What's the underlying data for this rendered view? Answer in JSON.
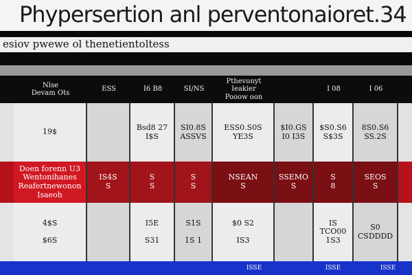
{
  "header": {
    "title": "Phypersertion anl perventonaioret.34",
    "subtitle": "esiov pwewe ol thenetientoltess"
  },
  "table": {
    "columns": [
      "Nlse\nDevam Ots",
      "ESS",
      "I6 B8",
      "SI/NS",
      "Pthevonyt\nIeakier\nPooow oon",
      null,
      "I 08",
      "I 06"
    ],
    "rows": [
      [
        "19$",
        null,
        "Bsd8 27\nI$S",
        "SI0.8S\nASSVS",
        "ESS0.S0S\nYE3S",
        "$I0.GS\nI0 I3S",
        "$S0.S6\nS$3S",
        "8S0.S6\nSS.2S"
      ],
      [
        "Doen forenn U3\nWentonihanes\nReafertnewonon\nIsaeoh",
        "IS4S\nS",
        "S\nS",
        "S\nS",
        "NSEAN\nS",
        "SSEMO\nS",
        "S\n8",
        "SEOS\nS"
      ],
      [
        "4$S\n\n$6S",
        null,
        "I5E\n\nS31",
        "S1S\n\n1S 1",
        "$0 S2\n\nIS3",
        null,
        "IS\nTCO00\n1S3",
        "S0\nCSDDDD"
      ]
    ]
  },
  "footer": {
    "labels": [
      "ISSE",
      "ISSE",
      "ISSE"
    ]
  }
}
